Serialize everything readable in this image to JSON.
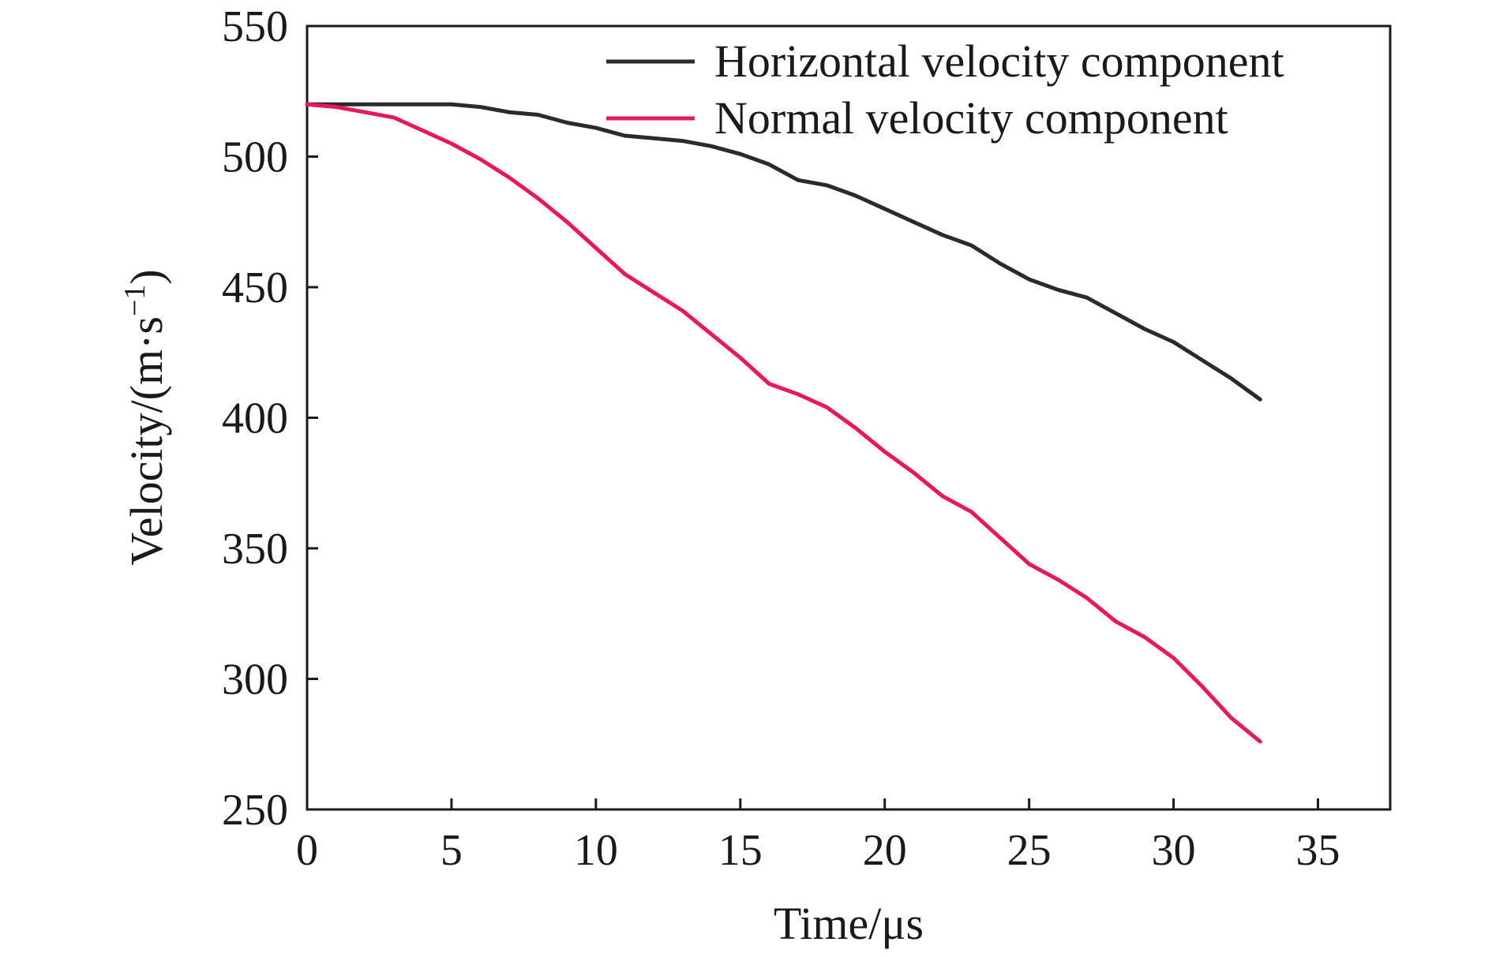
{
  "chart_data": {
    "type": "line",
    "title": "",
    "xlabel": "Time/μs",
    "ylabel_main": "Velocity/(m·s",
    "ylabel_sup": "−1",
    "ylabel_close": ")",
    "xlim": [
      0,
      37.5
    ],
    "ylim": [
      250,
      550
    ],
    "xticks": [
      0,
      5,
      10,
      15,
      20,
      25,
      30,
      35
    ],
    "yticks": [
      250,
      300,
      350,
      400,
      450,
      500,
      550
    ],
    "grid": false,
    "legend_position": "top-right",
    "series": [
      {
        "name": "Horizontal velocity component",
        "color": "#2b2b2b",
        "x": [
          0,
          1,
          2,
          3,
          4,
          5,
          6,
          7,
          8,
          9,
          10,
          11,
          12,
          13,
          14,
          15,
          16,
          17,
          18,
          19,
          20,
          21,
          22,
          23,
          24,
          25,
          26,
          27,
          28,
          29,
          30,
          31,
          32,
          33
        ],
        "y": [
          520,
          520,
          520,
          520,
          520,
          520,
          519,
          517,
          516,
          513,
          511,
          508,
          507,
          506,
          504,
          501,
          497,
          491,
          489,
          485,
          480,
          475,
          470,
          466,
          459,
          453,
          449,
          446,
          440,
          434,
          429,
          422,
          415,
          407
        ]
      },
      {
        "name": "Normal velocity component",
        "color": "#e8195a",
        "x": [
          0,
          1,
          2,
          3,
          4,
          5,
          6,
          7,
          8,
          9,
          10,
          11,
          12,
          13,
          14,
          15,
          16,
          17,
          18,
          19,
          20,
          21,
          22,
          23,
          24,
          25,
          26,
          27,
          28,
          29,
          30,
          31,
          32,
          33
        ],
        "y": [
          520,
          519,
          517,
          515,
          510,
          505,
          499,
          492,
          484,
          475,
          465,
          455,
          448,
          441,
          432,
          423,
          413,
          409,
          404,
          396,
          387,
          379,
          370,
          364,
          354,
          344,
          338,
          331,
          322,
          316,
          308,
          297,
          285,
          276
        ]
      }
    ]
  }
}
